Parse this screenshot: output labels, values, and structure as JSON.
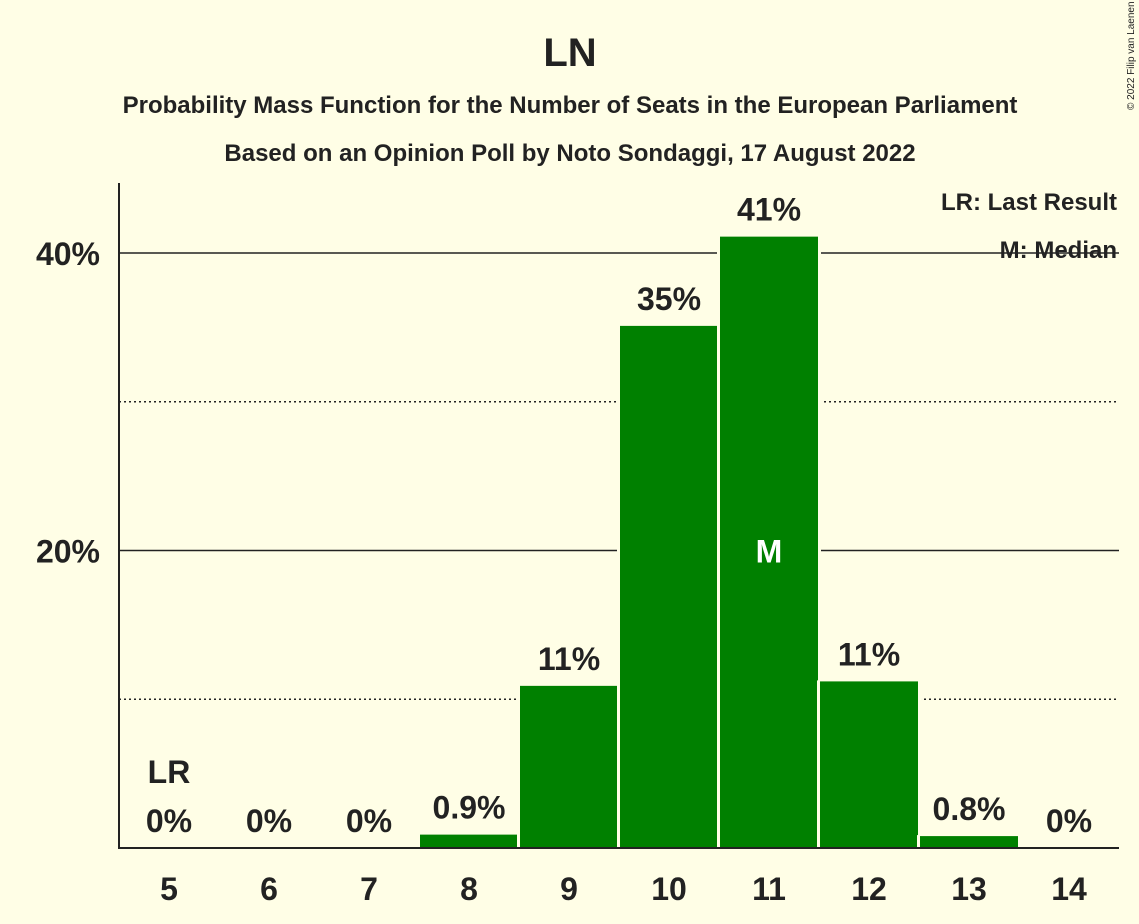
{
  "chart_data": {
    "type": "bar",
    "title": "LN",
    "subtitle": "Probability Mass Function for the Number of Seats in the European Parliament",
    "subtitle2": "Based on an Opinion Poll by Noto Sondaggi, 17 August 2022",
    "categories": [
      "5",
      "6",
      "7",
      "8",
      "9",
      "10",
      "11",
      "12",
      "13",
      "14"
    ],
    "values": [
      0,
      0,
      0,
      0.9,
      10.9,
      35.1,
      41.1,
      11.2,
      0.8,
      0
    ],
    "data_labels": [
      "0%",
      "0%",
      "0%",
      "0.9%",
      "11%",
      "35%",
      "41%",
      "11%",
      "0.8%",
      "0%"
    ],
    "ylim": [
      0,
      45
    ],
    "yticks": [
      {
        "value": 20,
        "label": "20%"
      },
      {
        "value": 40,
        "label": "40%"
      }
    ],
    "minor_gridlines": [
      10,
      30
    ],
    "last_result": {
      "category": "5",
      "label": "LR"
    },
    "median": {
      "category": "11",
      "label": "M"
    },
    "legend": [
      "LR: Last Result",
      "M: Median"
    ],
    "legend_position": "top-right",
    "copyright": "© 2022 Filip van Laenen",
    "colors": {
      "bar": "#008000",
      "background": "#FFFEE6",
      "text": "#222222"
    }
  }
}
